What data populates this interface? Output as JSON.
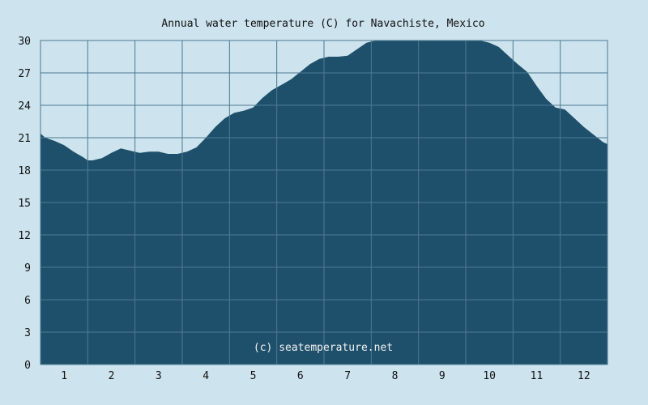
{
  "chart_data": {
    "type": "area",
    "title": "Annual water temperature (C) for Navachiste, Mexico",
    "xlabel": "",
    "ylabel": "",
    "watermark": "(c) seatemperature.net",
    "x_tick_labels": [
      "1",
      "2",
      "3",
      "4",
      "5",
      "6",
      "7",
      "8",
      "9",
      "10",
      "11",
      "12"
    ],
    "y_ticks": [
      0,
      3,
      6,
      9,
      12,
      15,
      18,
      21,
      24,
      27,
      30
    ],
    "xlim": [
      0.5,
      12.5
    ],
    "ylim": [
      0,
      30
    ],
    "grid": true,
    "colors": {
      "background": "#cde3ee",
      "fill": "#1f506b",
      "grid": "#4c7a93"
    },
    "series": [
      {
        "x": [
          0.5,
          0.6,
          0.8,
          1.0,
          1.2,
          1.4,
          1.5,
          1.6,
          1.8,
          2.0,
          2.2,
          2.4,
          2.6,
          2.8,
          3.0,
          3.2,
          3.4,
          3.6,
          3.8,
          4.0,
          4.2,
          4.4,
          4.6,
          4.8,
          5.0,
          5.2,
          5.4,
          5.6,
          5.8,
          6.0,
          6.2,
          6.4,
          6.6,
          6.8,
          7.0,
          7.2,
          7.4,
          7.6,
          7.8,
          8.0,
          8.2,
          8.4,
          8.6,
          8.8,
          9.0,
          9.2,
          9.4,
          9.6,
          9.8,
          10.0,
          10.2,
          10.4,
          10.6,
          10.8,
          11.0,
          11.2,
          11.4,
          11.6,
          11.8,
          12.0,
          12.2,
          12.4,
          12.5
        ],
        "y": [
          21.4,
          21.0,
          20.7,
          20.3,
          19.7,
          19.2,
          18.9,
          18.9,
          19.1,
          19.6,
          20.0,
          19.8,
          19.6,
          19.7,
          19.7,
          19.5,
          19.5,
          19.7,
          20.1,
          21.0,
          22.0,
          22.8,
          23.3,
          23.5,
          23.8,
          24.7,
          25.4,
          25.9,
          26.4,
          27.1,
          27.8,
          28.3,
          28.5,
          28.5,
          28.6,
          29.2,
          29.8,
          30.4,
          30.7,
          30.9,
          31.0,
          31.0,
          31.1,
          30.7,
          30.4,
          30.3,
          30.1,
          30.2,
          30.0,
          29.8,
          29.4,
          28.6,
          27.8,
          27.1,
          25.8,
          24.6,
          23.8,
          23.6,
          22.8,
          22.0,
          21.3,
          20.6,
          20.4
        ]
      }
    ]
  }
}
